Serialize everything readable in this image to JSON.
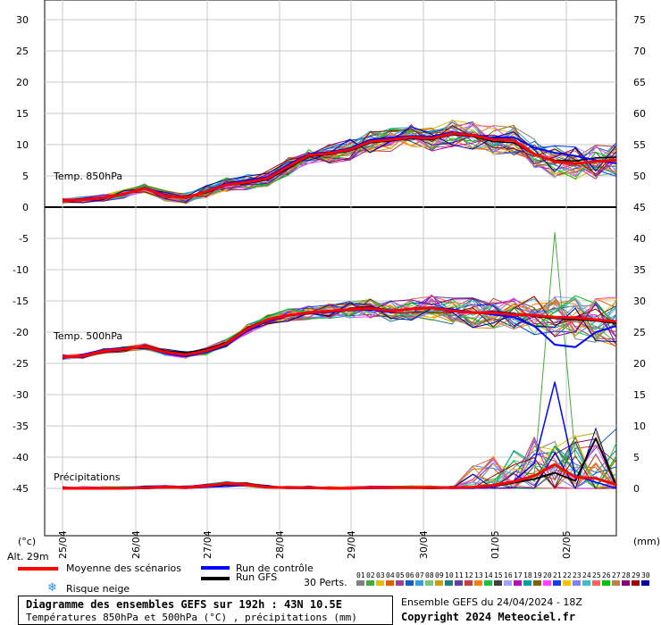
{
  "chart_data": {
    "type": "line",
    "title": "Diagramme des ensembles GEFS sur 192h : 43N 10.5E",
    "subtitle": "Températures 850hPa et 500hPa (°C) , précipitations (mm)",
    "run_info": "Ensemble GEFS du 24/04/2024 - 18Z",
    "copyright": "Copyright 2024 Meteociel.fr",
    "altitude": "Alt. 29m",
    "left_unit": "(°c)",
    "right_unit": "(mm)",
    "x_labels": [
      "25/04",
      "26/04",
      "27/04",
      "28/04",
      "29/04",
      "30/04",
      "01/05",
      "02/05"
    ],
    "left_ticks": [
      "30",
      "25",
      "20",
      "15",
      "10",
      "5",
      "0",
      "-5",
      "-10",
      "-15",
      "-20",
      "-25",
      "-30",
      "-35",
      "-40",
      "-45"
    ],
    "right_ticks": [
      "75",
      "70",
      "65",
      "60",
      "55",
      "50",
      "45",
      "40",
      "35",
      "30",
      "25",
      "20",
      "15",
      "10",
      "5",
      "0"
    ],
    "panel_labels": {
      "t850": "Temp. 850hPa",
      "t500": "Temp. 500hPa",
      "precip": "Précipitations"
    },
    "t850": {
      "ylim": [
        0,
        30
      ],
      "mean": [
        1,
        1.2,
        1.5,
        2.1,
        3,
        1.8,
        1.5,
        2.5,
        3.6,
        4,
        4.6,
        6.5,
        8.3,
        8.6,
        9.2,
        10.5,
        10.8,
        11.2,
        11,
        11.8,
        11.5,
        10.8,
        10.7,
        8.5,
        7.3,
        7,
        7.3,
        7.5
      ],
      "control": [
        1,
        1.3,
        1.6,
        2,
        3.1,
        2,
        1.4,
        2.6,
        3.8,
        4.3,
        4.8,
        6.8,
        8.5,
        8.8,
        9.4,
        10.8,
        11.1,
        11.4,
        11.3,
        12,
        11.6,
        11.1,
        11.2,
        9.5,
        8.7,
        8.2,
        7.5,
        7
      ],
      "gfs": [
        0.9,
        1.1,
        1.4,
        2.2,
        3,
        1.7,
        1.6,
        2.3,
        3.5,
        3.8,
        4.4,
        6.2,
        8.1,
        8.4,
        9,
        10.3,
        10.6,
        11,
        10.8,
        11.6,
        11.3,
        10.5,
        10.3,
        8.4,
        7.5,
        7.4,
        7.9,
        8
      ]
    },
    "t500": {
      "ylim": [
        -45,
        0
      ],
      "mean": [
        -24,
        -23.8,
        -23,
        -22.7,
        -22.3,
        -23.2,
        -23.6,
        -23,
        -21.8,
        -19.5,
        -18,
        -17.3,
        -16.9,
        -16.6,
        -16.4,
        -16.2,
        -16.6,
        -16.3,
        -16.1,
        -16.6,
        -16.9,
        -16.9,
        -17.2,
        -17.3,
        -17.6,
        -17.7,
        -18,
        -18.3
      ],
      "control": [
        -24.2,
        -23.6,
        -22.8,
        -22.5,
        -22.4,
        -23.4,
        -23.9,
        -23.2,
        -22,
        -19.8,
        -18.2,
        -17.4,
        -17,
        -16.8,
        -16.5,
        -16.4,
        -16.8,
        -16.2,
        -16,
        -16.4,
        -16.8,
        -17.2,
        -17.6,
        -19,
        -22,
        -22.4,
        -20,
        -19
      ],
      "gfs": [
        -24,
        -23.9,
        -23.1,
        -22.9,
        -22.2,
        -23,
        -23.3,
        -22.7,
        -21.6,
        -19.3,
        -17.9,
        -17.2,
        -16.8,
        -16.7,
        -16.3,
        -16,
        -16.5,
        -16.4,
        -16.2,
        -16.7,
        -16.9,
        -16.7,
        -17,
        -17.5,
        -17.8,
        -18,
        -18.2,
        -18.6
      ]
    },
    "precip": {
      "ylim": [
        0,
        45
      ],
      "mean": [
        0,
        0,
        0,
        0,
        0.1,
        0.2,
        0.1,
        0.4,
        0.8,
        0.6,
        0.2,
        0.1,
        0.1,
        0,
        0,
        0.1,
        0.1,
        0.1,
        0.1,
        0.1,
        0.2,
        0.5,
        1.1,
        2,
        3.8,
        1.8,
        1.6,
        0.6
      ],
      "control": [
        0,
        0,
        0,
        0,
        0,
        0.1,
        0,
        0.2,
        0.3,
        0.5,
        0.1,
        0,
        0,
        0,
        0,
        0,
        0,
        0.2,
        0.1,
        0,
        0,
        0.3,
        1.2,
        4,
        17,
        2,
        1,
        0
      ],
      "gfs": [
        0,
        0,
        0,
        0,
        0,
        0.1,
        0.1,
        0.3,
        0.6,
        0.7,
        0.2,
        0.1,
        0,
        0,
        0,
        0,
        0.1,
        0.1,
        0,
        0.1,
        0.1,
        0.4,
        0.9,
        1.5,
        2.5,
        1.2,
        8,
        0.5
      ],
      "spike_max": 41
    },
    "legend": {
      "mean": "Moyenne des scénarios",
      "control": "Run de contrôle",
      "gfs": "Run GFS",
      "snow": "Risque neige",
      "perts": "30 Perts."
    },
    "pert_numbers": [
      "01",
      "02",
      "03",
      "04",
      "05",
      "06",
      "07",
      "08",
      "09",
      "10",
      "11",
      "12",
      "13",
      "14",
      "15",
      "16",
      "17",
      "18",
      "19",
      "20",
      "21",
      "22",
      "23",
      "24",
      "25",
      "26",
      "27",
      "28",
      "29",
      "30"
    ],
    "pert_colors": [
      "#7f7f7f",
      "#4aa840",
      "#e0c000",
      "#e06000",
      "#a04090",
      "#1060c0",
      "#30a0e0",
      "#80c080",
      "#c8a000",
      "#208080",
      "#6040a0",
      "#c04040",
      "#ff8000",
      "#20c040",
      "#404040",
      "#a0a0ff",
      "#c000c0",
      "#00a0a0",
      "#806000",
      "#ff40ff",
      "#0040ff",
      "#ffc000",
      "#8080ff",
      "#40c0c0",
      "#ff6060",
      "#00c000",
      "#c08040",
      "#800080",
      "#a00000",
      "#0000a0"
    ],
    "colors": {
      "mean": "#ff0000",
      "control": "#0000ff",
      "gfs": "#000000"
    }
  }
}
